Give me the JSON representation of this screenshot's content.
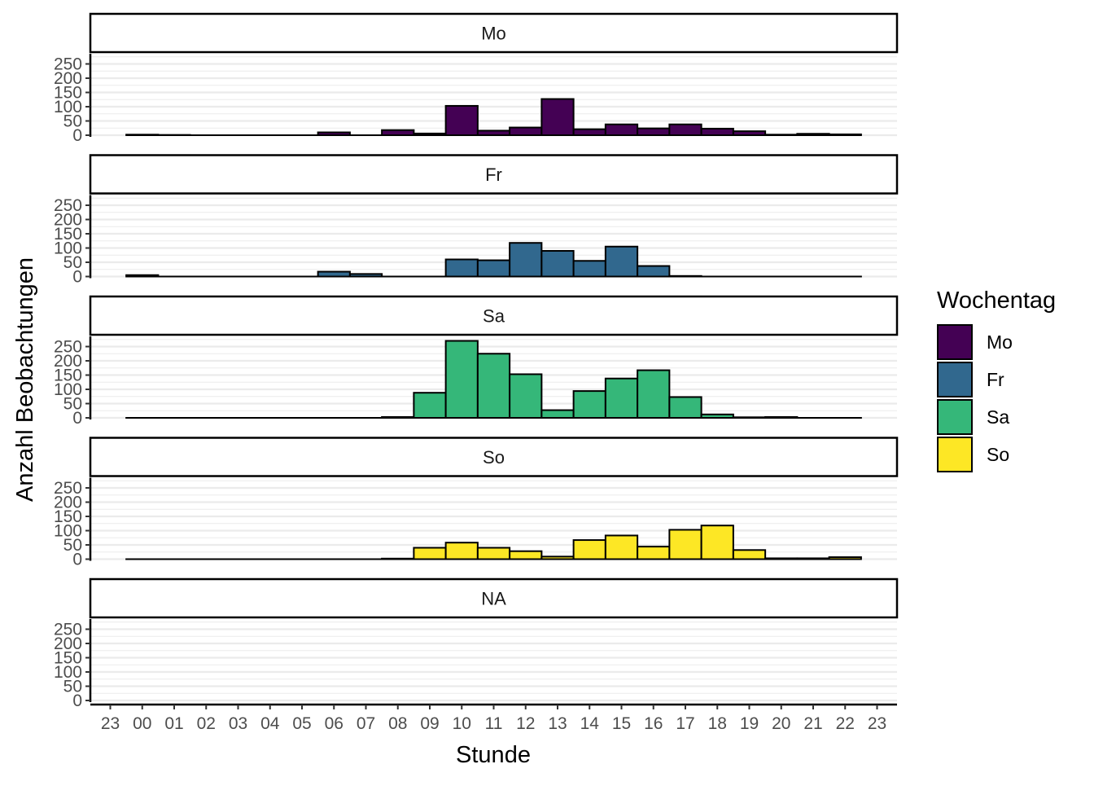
{
  "chart_data": {
    "type": "bar",
    "facet_variable": "Wochentag",
    "xlabel": "Stunde",
    "ylabel": "Anzahl Beobachtungen",
    "x_tick_labels": [
      "23",
      "00",
      "01",
      "02",
      "03",
      "04",
      "05",
      "06",
      "07",
      "08",
      "09",
      "10",
      "11",
      "12",
      "13",
      "14",
      "15",
      "16",
      "17",
      "18",
      "19",
      "20",
      "21",
      "22",
      "23"
    ],
    "y_ticks": [
      0,
      50,
      100,
      150,
      200,
      250
    ],
    "ylim": [
      0,
      280
    ],
    "grid": "horizontal major and minor gridlines",
    "legend": {
      "title": "Wochentag",
      "position": "right",
      "entries": [
        {
          "label": "Mo",
          "color": "#440154"
        },
        {
          "label": "Fr",
          "color": "#31688E"
        },
        {
          "label": "Sa",
          "color": "#35B779"
        },
        {
          "label": "So",
          "color": "#FDE725"
        }
      ]
    },
    "bar_hours": [
      "00",
      "01",
      "02",
      "03",
      "04",
      "05",
      "06",
      "07",
      "08",
      "09",
      "10",
      "11",
      "12",
      "13",
      "14",
      "15",
      "16",
      "17",
      "18",
      "19",
      "20",
      "21",
      "22"
    ],
    "panels": [
      {
        "label": "Mo",
        "color": "#440154",
        "values": [
          2,
          1,
          0,
          0,
          0,
          0,
          10,
          0,
          18,
          6,
          103,
          16,
          27,
          127,
          21,
          38,
          24,
          38,
          23,
          14,
          2,
          5,
          3
        ]
      },
      {
        "label": "Fr",
        "color": "#31688E",
        "values": [
          5,
          0,
          0,
          0,
          0,
          0,
          17,
          9,
          0,
          0,
          60,
          57,
          118,
          90,
          55,
          105,
          37,
          2,
          0,
          0,
          0,
          0,
          0
        ]
      },
      {
        "label": "Sa",
        "color": "#35B779",
        "values": [
          0,
          0,
          0,
          0,
          0,
          0,
          0,
          0,
          3,
          88,
          270,
          225,
          153,
          27,
          94,
          138,
          167,
          73,
          12,
          2,
          3,
          0,
          0
        ]
      },
      {
        "label": "So",
        "color": "#FDE725",
        "values": [
          0,
          0,
          0,
          0,
          0,
          0,
          0,
          0,
          2,
          40,
          58,
          40,
          28,
          9,
          67,
          83,
          44,
          103,
          118,
          32,
          3,
          3,
          7
        ]
      },
      {
        "label": "NA",
        "color": "#808080",
        "values": []
      }
    ]
  }
}
